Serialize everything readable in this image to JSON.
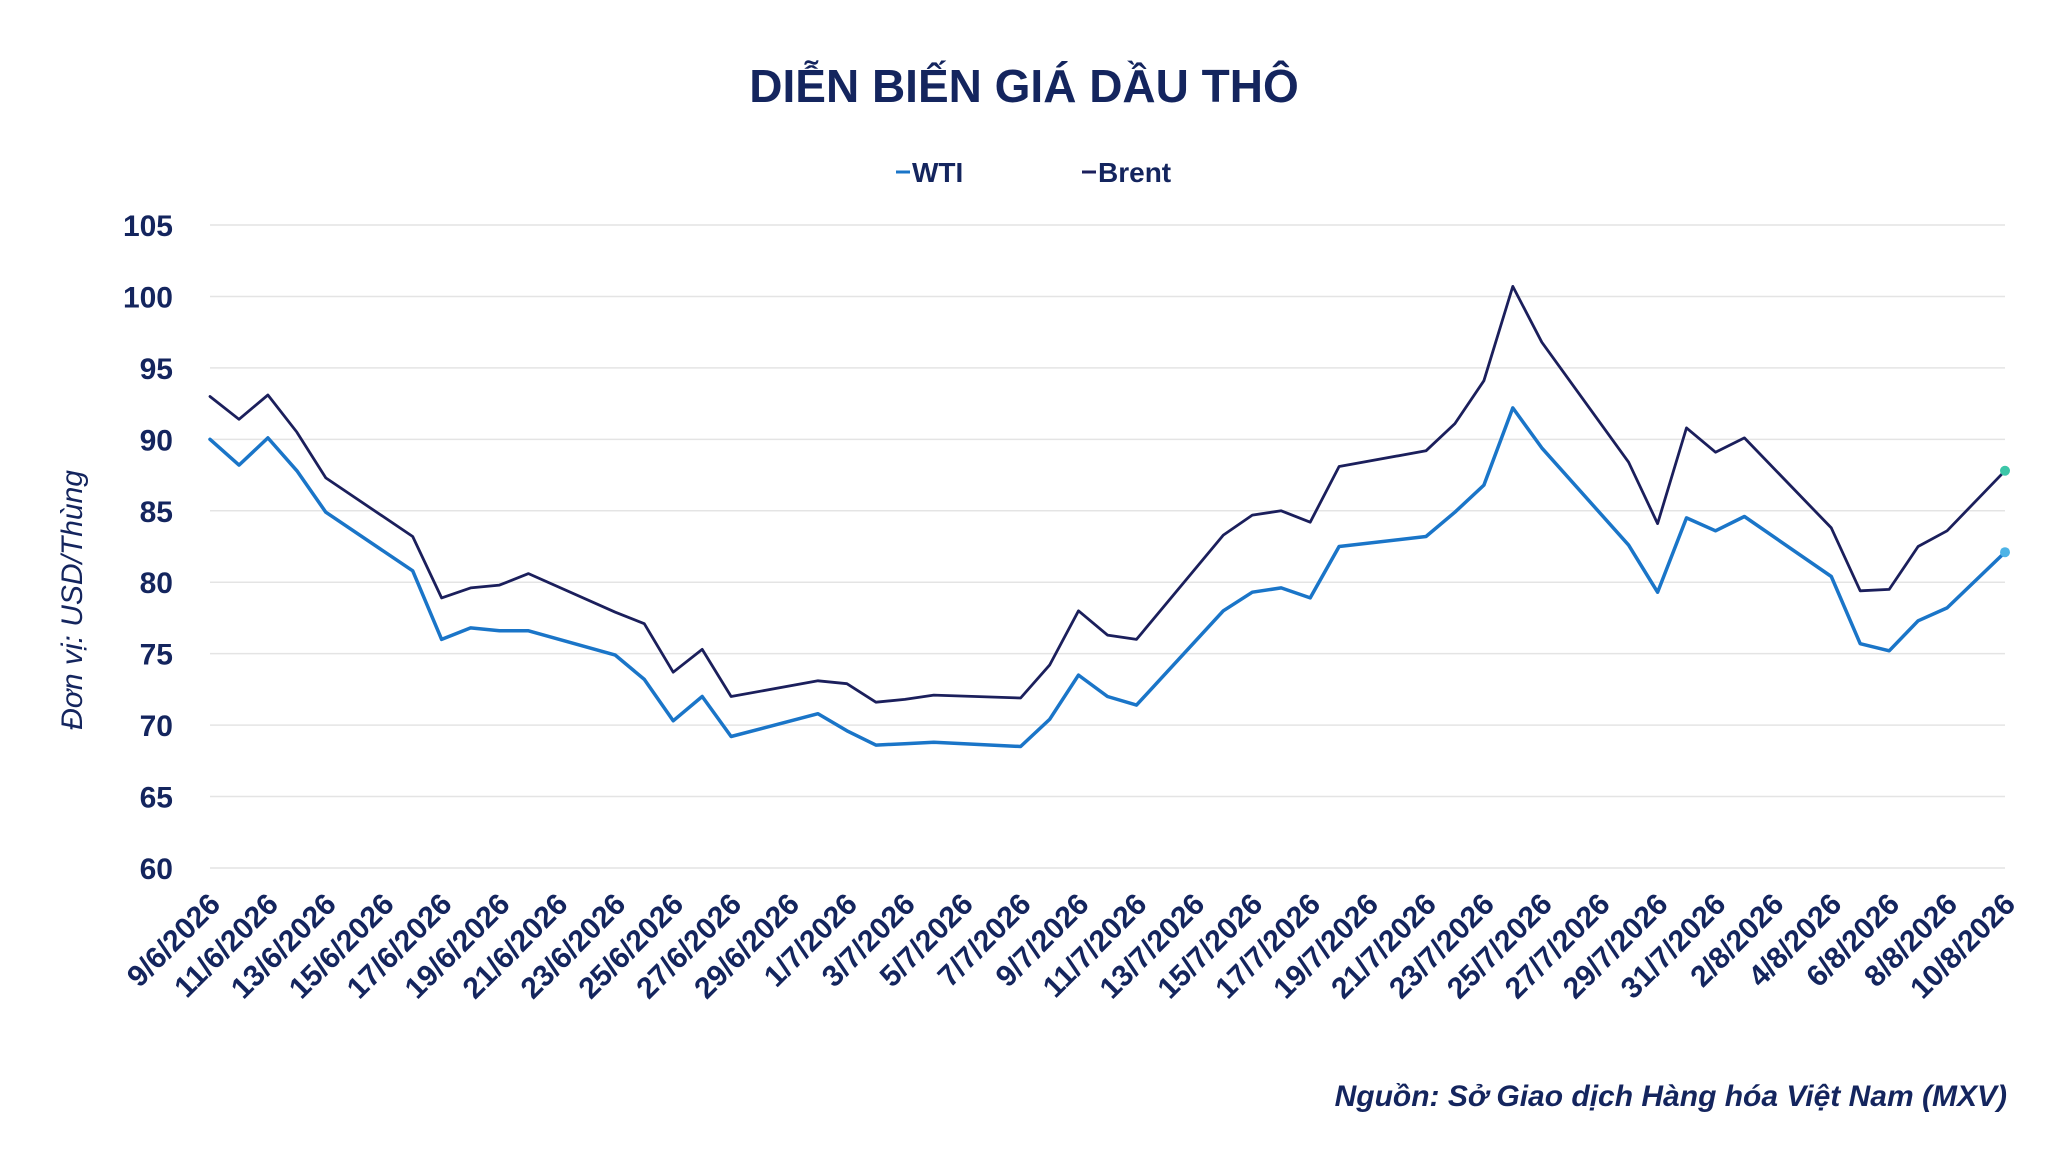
{
  "chart_data": {
    "type": "line",
    "title": "DIỄN BIẾN GIÁ DẦU THÔ",
    "ylabel": "Đơn vị: USD/Thùng",
    "xlabel": "",
    "ylim": [
      60,
      105
    ],
    "yticks": [
      60,
      65,
      70,
      75,
      80,
      85,
      90,
      95,
      100,
      105
    ],
    "grid": true,
    "legend_position": "top-center",
    "source": "Nguồn: Sở Giao dịch Hàng hóa Việt Nam (MXV)",
    "x_tick_labels": [
      "9/6/2026",
      "11/6/2026",
      "13/6/2026",
      "15/6/2026",
      "17/6/2026",
      "19/6/2026",
      "21/6/2026",
      "23/6/2026",
      "25/6/2026",
      "27/6/2026",
      "29/6/2026",
      "1/7/2026",
      "3/7/2026",
      "5/7/2026",
      "7/7/2026",
      "9/7/2026",
      "11/7/2026",
      "13/7/2026",
      "15/7/2026",
      "17/7/2026",
      "19/7/2026",
      "21/7/2026",
      "23/7/2026",
      "25/7/2026",
      "27/7/2026",
      "29/7/2026",
      "31/7/2026",
      "2/8/2026",
      "4/8/2026",
      "6/8/2026",
      "8/8/2026",
      "10/8/2026"
    ],
    "x": [
      "9/6/2026",
      "10/6/2026",
      "11/6/2026",
      "12/6/2026",
      "13/6/2026",
      "16/6/2026",
      "17/6/2026",
      "18/6/2026",
      "19/6/2026",
      "20/6/2026",
      "23/6/2026",
      "24/6/2026",
      "25/6/2026",
      "26/6/2026",
      "27/6/2026",
      "30/6/2026",
      "1/7/2026",
      "2/7/2026",
      "3/7/2026",
      "4/7/2026",
      "7/7/2026",
      "8/7/2026",
      "9/7/2026",
      "10/7/2026",
      "11/7/2026",
      "14/7/2026",
      "15/7/2026",
      "16/7/2026",
      "17/7/2026",
      "18/7/2026",
      "21/7/2026",
      "22/7/2026",
      "23/7/2026",
      "24/7/2026",
      "25/7/2026",
      "28/7/2026",
      "29/7/2026",
      "30/7/2026",
      "31/7/2026",
      "1/8/2026",
      "4/8/2026",
      "5/8/2026",
      "6/8/2026",
      "7/8/2026",
      "8/8/2026",
      "10/8/2026"
    ],
    "series": [
      {
        "name": "WTI",
        "color": "#1a75c8",
        "values": [
          90.0,
          88.2,
          90.1,
          87.8,
          84.9,
          80.8,
          76.0,
          76.8,
          76.6,
          76.6,
          74.9,
          73.2,
          70.3,
          72.0,
          69.2,
          70.8,
          69.6,
          68.6,
          68.7,
          68.8,
          68.5,
          70.4,
          73.5,
          72.0,
          71.4,
          78.0,
          79.3,
          79.6,
          78.9,
          82.5,
          83.2,
          84.9,
          86.8,
          92.2,
          89.4,
          82.6,
          79.3,
          84.5,
          83.6,
          84.6,
          80.4,
          75.7,
          75.2,
          77.3,
          78.2,
          82.1
        ]
      },
      {
        "name": "Brent",
        "color": "#1b1f5c",
        "values": [
          93.0,
          91.4,
          93.1,
          90.5,
          87.3,
          83.2,
          78.9,
          79.6,
          79.8,
          80.6,
          77.9,
          77.1,
          73.7,
          75.3,
          72.0,
          73.1,
          72.9,
          71.6,
          71.8,
          72.1,
          71.9,
          74.2,
          78.0,
          76.3,
          76.0,
          83.3,
          84.7,
          85.0,
          84.2,
          88.1,
          89.2,
          91.1,
          94.1,
          100.7,
          96.8,
          88.4,
          84.1,
          90.8,
          89.1,
          90.1,
          83.8,
          79.4,
          79.5,
          82.5,
          83.6,
          87.8
        ]
      }
    ]
  }
}
